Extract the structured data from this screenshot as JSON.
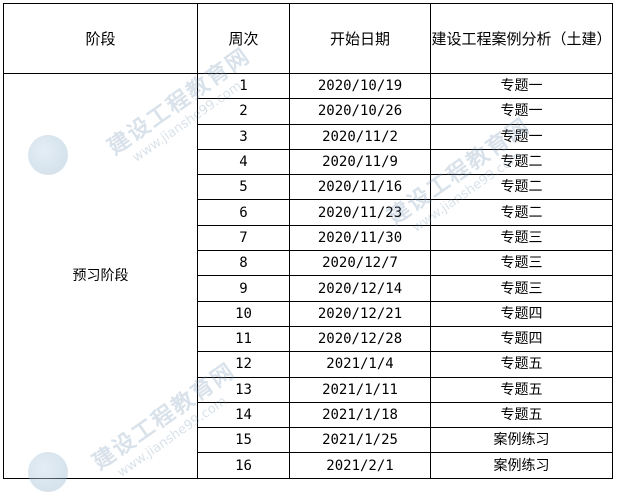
{
  "table": {
    "headers": [
      "阶段",
      "周次",
      "开始日期",
      "建设工程案例分析（土建）"
    ],
    "stage": "预习阶段",
    "rows": [
      {
        "week": "1",
        "date": "2020/10/19",
        "topic": "专题一"
      },
      {
        "week": "2",
        "date": "2020/10/26",
        "topic": "专题一"
      },
      {
        "week": "3",
        "date": "2020/11/2",
        "topic": "专题一"
      },
      {
        "week": "4",
        "date": "2020/11/9",
        "topic": "专题二"
      },
      {
        "week": "5",
        "date": "2020/11/16",
        "topic": "专题二"
      },
      {
        "week": "6",
        "date": "2020/11/23",
        "topic": "专题二"
      },
      {
        "week": "7",
        "date": "2020/11/30",
        "topic": "专题三"
      },
      {
        "week": "8",
        "date": "2020/12/7",
        "topic": "专题三"
      },
      {
        "week": "9",
        "date": "2020/12/14",
        "topic": "专题三"
      },
      {
        "week": "10",
        "date": "2020/12/21",
        "topic": "专题四"
      },
      {
        "week": "11",
        "date": "2020/12/28",
        "topic": "专题四"
      },
      {
        "week": "12",
        "date": "2021/1/4",
        "topic": "专题五"
      },
      {
        "week": "13",
        "date": "2021/1/11",
        "topic": "专题五"
      },
      {
        "week": "14",
        "date": "2021/1/18",
        "topic": "专题五"
      },
      {
        "week": "15",
        "date": "2021/1/25",
        "topic": "案例练习"
      },
      {
        "week": "16",
        "date": "2021/2/1",
        "topic": "案例练习"
      }
    ]
  },
  "watermark": {
    "name": "建设工程教育网",
    "url": "www.jianshe99.com"
  }
}
